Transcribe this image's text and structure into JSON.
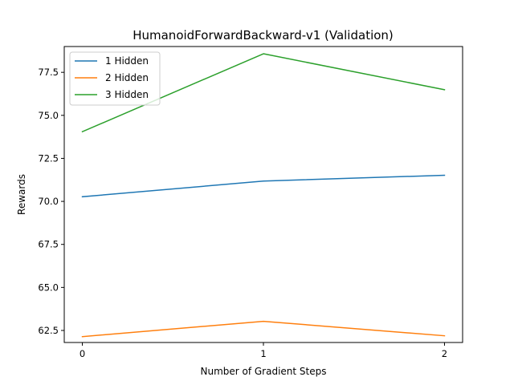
{
  "chart_data": {
    "type": "line",
    "title": "HumanoidForwardBackward-v1 (Validation)",
    "xlabel": "Number of Gradient Steps",
    "ylabel": "Rewards",
    "x": [
      0,
      1,
      2
    ],
    "xticks": [
      "0",
      "1",
      "2"
    ],
    "yticks": [
      "62.5",
      "65.0",
      "67.5",
      "70.0",
      "72.5",
      "75.0",
      "77.5"
    ],
    "xlim": [
      -0.1,
      2.1
    ],
    "ylim": [
      61.8,
      79.0
    ],
    "grid": false,
    "legend_position": "top-left",
    "series": [
      {
        "name": "1 Hidden",
        "color": "#1f77b4",
        "values": [
          70.27,
          71.18,
          71.52
        ]
      },
      {
        "name": "2 Hidden",
        "color": "#ff7f0e",
        "values": [
          62.14,
          63.03,
          62.19
        ]
      },
      {
        "name": "3 Hidden",
        "color": "#2ca02c",
        "values": [
          74.05,
          78.58,
          76.49
        ]
      }
    ]
  }
}
